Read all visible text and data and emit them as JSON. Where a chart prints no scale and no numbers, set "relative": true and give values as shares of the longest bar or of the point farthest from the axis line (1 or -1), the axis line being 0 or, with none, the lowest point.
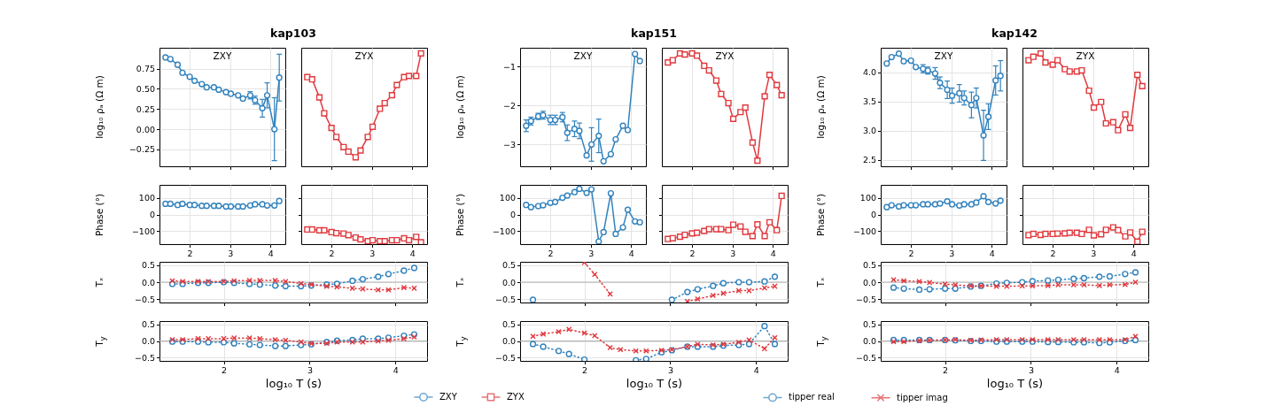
{
  "chart_data": [
    {
      "type": "line",
      "title": "kap103",
      "ylabel": "log₁₀ ρₐ (Ω m)",
      "x": [
        1.4,
        1.52,
        1.7,
        1.82,
        2.0,
        2.12,
        2.3,
        2.42,
        2.6,
        2.72,
        2.9,
        3.02,
        3.2,
        3.32,
        3.5,
        3.62,
        3.8,
        3.92,
        4.1,
        4.22
      ],
      "xlim": [
        1.25,
        4.37
      ],
      "xticks": [
        2,
        3,
        4
      ],
      "ylim": [
        -0.46,
        1.01
      ],
      "yticks": [
        {
          "value": -0.25,
          "label": "−0.25"
        },
        {
          "value": 0,
          "label": "0.00"
        },
        {
          "value": 0.25,
          "label": "0.25"
        },
        {
          "value": 0.5,
          "label": "0.50"
        },
        {
          "value": 0.75,
          "label": "0.75"
        }
      ],
      "grid": true,
      "tick_labels": "y",
      "series": [
        {
          "name": "ZXY",
          "color": "#3182bd",
          "marker": "circle",
          "line_style": "solid",
          "values": [
            0.89,
            0.87,
            0.8,
            0.7,
            0.65,
            0.6,
            0.56,
            0.52,
            0.52,
            0.49,
            0.46,
            0.44,
            0.42,
            0.38,
            0.42,
            0.36,
            0.26,
            0.42,
            0.0,
            0.64
          ],
          "errors": [
            null,
            null,
            null,
            null,
            null,
            null,
            null,
            null,
            null,
            null,
            null,
            null,
            null,
            null,
            0.045,
            0.05,
            0.11,
            0.155,
            0.39,
            0.29
          ]
        }
      ]
    },
    {
      "type": "line",
      "relative": true,
      "x": [
        1.4,
        1.52,
        1.7,
        1.82,
        2.0,
        2.12,
        2.3,
        2.42,
        2.6,
        2.72,
        2.9,
        3.02,
        3.2,
        3.32,
        3.5,
        3.62,
        3.8,
        3.92,
        4.1,
        4.22
      ],
      "xlim": [
        1.25,
        4.37
      ],
      "xticks": [
        2,
        3,
        4
      ],
      "grid": true,
      "tick_labels": false,
      "series": [
        {
          "name": "ZYX",
          "color": "#e0393e",
          "marker": "square",
          "line_style": "solid",
          "values": [
            0.79,
            0.77,
            0.61,
            0.47,
            0.34,
            0.26,
            0.17,
            0.13,
            0.08,
            0.14,
            0.26,
            0.35,
            0.51,
            0.56,
            0.63,
            0.72,
            0.79,
            0.8,
            0.8,
            1
          ]
        }
      ]
    },
    {
      "type": "line",
      "ylabel": "Phase (°)",
      "x": [
        1.4,
        1.52,
        1.7,
        1.82,
        2.0,
        2.12,
        2.3,
        2.42,
        2.6,
        2.72,
        2.9,
        3.02,
        3.2,
        3.32,
        3.5,
        3.62,
        3.8,
        3.92,
        4.1,
        4.22
      ],
      "xlim": [
        1.25,
        4.37
      ],
      "xticks": [
        2,
        3,
        4
      ],
      "ylim": [
        -180,
        180
      ],
      "yticks": [
        {
          "value": -100,
          "label": "−100"
        },
        0,
        100
      ],
      "grid": true,
      "legend": "bottom",
      "series": [
        {
          "name": "ZXY",
          "color": "#3182bd",
          "marker": "circle",
          "line_style": "solid",
          "values": [
            65,
            65,
            58,
            65,
            58,
            58,
            53,
            53,
            53,
            53,
            49,
            49,
            49,
            49,
            55,
            62,
            62,
            55,
            55,
            82
          ]
        }
      ]
    },
    {
      "type": "line",
      "x": [
        1.4,
        1.52,
        1.7,
        1.82,
        2.0,
        2.12,
        2.3,
        2.42,
        2.6,
        2.72,
        2.9,
        3.02,
        3.2,
        3.32,
        3.5,
        3.62,
        3.8,
        3.92,
        4.1,
        4.22
      ],
      "xlim": [
        1.25,
        4.37
      ],
      "xticks": [
        2,
        3,
        4
      ],
      "ylim": [
        -180,
        180
      ],
      "yticks": [
        -100,
        0,
        100
      ],
      "grid": true,
      "tick_labels": "x",
      "legend": "bottom",
      "series": [
        {
          "name": "ZYX",
          "color": "#e0393e",
          "marker": "square",
          "line_style": "solid",
          "values": [
            -91,
            -91,
            -96,
            -96,
            -107,
            -113,
            -116,
            -125,
            -140,
            -151,
            -162,
            -156,
            -162,
            -162,
            -156,
            -156,
            -145,
            -156,
            -136,
            -169
          ]
        }
      ]
    },
    {
      "type": "line",
      "ylabel": "Tₓ",
      "x": [
        1.4,
        1.52,
        1.7,
        1.82,
        2.0,
        2.12,
        2.3,
        2.42,
        2.6,
        2.72,
        2.9,
        3.02,
        3.2,
        3.32,
        3.5,
        3.62,
        3.8,
        3.92,
        4.1,
        4.22
      ],
      "xlim": [
        1.25,
        4.37
      ],
      "xticks": [
        2,
        3,
        4
      ],
      "ylim": [
        -0.6,
        0.6
      ],
      "yticks": [
        {
          "value": -0.5,
          "label": "−0.5"
        },
        {
          "value": 0,
          "label": "0.0"
        },
        0.5
      ],
      "grid": true,
      "tick_labels": "y",
      "ref_lines": [
        {
          "axis": "y",
          "value": 0,
          "color": "#b0b0b0"
        }
      ],
      "series": [
        {
          "color": "#3182bd",
          "marker": "circle",
          "line_style": "dotted",
          "values": [
            -0.05,
            -0.05,
            -0.02,
            -0.02,
            0,
            -0.02,
            -0.05,
            -0.07,
            -0.1,
            -0.12,
            -0.12,
            -0.1,
            -0.07,
            -0.05,
            0.04,
            0.09,
            0.16,
            0.24,
            0.34,
            0.42
          ]
        },
        {
          "color": "#e0393e",
          "marker": "cross",
          "line_style": "dotted",
          "values": [
            0.04,
            0.02,
            0.02,
            0.02,
            0.02,
            0.04,
            0.05,
            0.05,
            0.05,
            0.02,
            -0.04,
            -0.07,
            -0.12,
            -0.14,
            -0.18,
            -0.2,
            -0.23,
            -0.23,
            -0.16,
            -0.18
          ]
        }
      ]
    },
    {
      "type": "line",
      "xlabel": "log₁₀ T (s)",
      "ylabel": "T$_{y}$",
      "x": [
        1.4,
        1.52,
        1.7,
        1.82,
        2.0,
        2.12,
        2.3,
        2.42,
        2.6,
        2.72,
        2.9,
        3.02,
        3.2,
        3.32,
        3.5,
        3.62,
        3.8,
        3.92,
        4.1,
        4.22
      ],
      "xlim": [
        1.25,
        4.37
      ],
      "xticks": [
        2,
        3,
        4
      ],
      "ylim": [
        -0.6,
        0.6
      ],
      "yticks": [
        {
          "value": -0.5,
          "label": "−0.5"
        },
        {
          "value": 0,
          "label": "0.0"
        },
        0.5
      ],
      "grid": true,
      "ref_lines": [
        {
          "axis": "y",
          "value": 0,
          "color": "#b0b0b0"
        }
      ],
      "series": [
        {
          "color": "#3182bd",
          "marker": "circle",
          "line_style": "dotted",
          "values": [
            -0.02,
            -0.02,
            -0.02,
            -0.04,
            -0.04,
            -0.07,
            -0.1,
            -0.12,
            -0.15,
            -0.15,
            -0.12,
            -0.1,
            -0.03,
            0.01,
            0.03,
            0.07,
            0.07,
            0.1,
            0.16,
            0.2
          ]
        },
        {
          "color": "#e0393e",
          "marker": "cross",
          "line_style": "dotted",
          "values": [
            0.04,
            0.04,
            0.07,
            0.07,
            0.07,
            0.09,
            0.09,
            0.07,
            0.04,
            0.02,
            -0.03,
            -0.08,
            -0.07,
            -0.03,
            -0.03,
            -0.03,
            0,
            0.02,
            0.07,
            0.12
          ]
        }
      ]
    },
    {
      "type": "line",
      "title": "kap151",
      "ylabel": "log₁₀ ρₐ (Ω m)",
      "x": [
        1.4,
        1.52,
        1.7,
        1.82,
        2.0,
        2.12,
        2.3,
        2.42,
        2.6,
        2.72,
        2.9,
        3.02,
        3.2,
        3.32,
        3.5,
        3.62,
        3.8,
        3.92,
        4.1,
        4.22
      ],
      "xlim": [
        1.25,
        4.37
      ],
      "xticks": [
        2,
        3,
        4
      ],
      "ylim": [
        -3.56,
        -0.52
      ],
      "yticks": [
        {
          "value": -3,
          "label": "−3"
        },
        {
          "value": -2,
          "label": "−2"
        },
        {
          "value": -1,
          "label": "−1"
        }
      ],
      "grid": true,
      "tick_labels": "y",
      "series": [
        {
          "name": "ZXY",
          "color": "#3182bd",
          "marker": "circle",
          "line_style": "solid",
          "values": [
            -2.52,
            -2.4,
            -2.28,
            -2.25,
            -2.37,
            -2.37,
            -2.3,
            -2.7,
            -2.6,
            -2.65,
            -3.28,
            -3.0,
            -2.78,
            -3.43,
            -3.25,
            -2.87,
            -2.52,
            -2.63,
            -0.68,
            -0.86
          ],
          "errors": [
            0.15,
            0.1,
            0.08,
            0.1,
            0.12,
            0.12,
            0.12,
            0.2,
            0.2,
            0.2,
            null,
            0.43,
            0.43,
            null,
            null,
            null,
            null,
            null,
            null,
            null
          ]
        }
      ]
    },
    {
      "type": "line",
      "relative": true,
      "x": [
        1.4,
        1.52,
        1.7,
        1.82,
        2.0,
        2.12,
        2.3,
        2.42,
        2.6,
        2.72,
        2.9,
        3.02,
        3.2,
        3.32,
        3.5,
        3.62,
        3.8,
        3.92,
        4.1,
        4.22
      ],
      "xlim": [
        1.25,
        4.37
      ],
      "xticks": [
        2,
        3,
        4
      ],
      "grid": true,
      "tick_labels": false,
      "series": [
        {
          "name": "ZYX",
          "color": "#e0393e",
          "marker": "square",
          "line_style": "solid",
          "values": [
            0.92,
            0.94,
            1,
            0.99,
            1,
            0.98,
            0.89,
            0.85,
            0.76,
            0.64,
            0.56,
            0.42,
            0.48,
            0.52,
            0.21,
            0.05,
            0.62,
            0.81,
            0.72,
            0.63
          ]
        }
      ]
    },
    {
      "type": "line",
      "ylabel": "Phase (°)",
      "x": [
        1.4,
        1.52,
        1.7,
        1.82,
        2.0,
        2.12,
        2.3,
        2.42,
        2.6,
        2.72,
        2.9,
        3.02,
        3.2,
        3.32,
        3.5,
        3.62,
        3.8,
        3.92,
        4.1,
        4.22
      ],
      "xlim": [
        1.25,
        4.37
      ],
      "xticks": [
        2,
        3,
        4
      ],
      "ylim": [
        -180,
        180
      ],
      "yticks": [
        {
          "value": -100,
          "label": "−100"
        },
        0,
        100
      ],
      "grid": true,
      "series": [
        {
          "color": "#3182bd",
          "marker": "circle",
          "line_style": "solid",
          "values": [
            58,
            45,
            51,
            56,
            71,
            76,
            102,
            115,
            136,
            156,
            131,
            153,
            -164,
            -107,
            129,
            -118,
            -78,
            29,
            -42,
            -47
          ]
        }
      ]
    },
    {
      "type": "line",
      "x": [
        1.4,
        1.52,
        1.7,
        1.82,
        2.0,
        2.12,
        2.3,
        2.42,
        2.6,
        2.72,
        2.9,
        3.02,
        3.2,
        3.32,
        3.5,
        3.62,
        3.8,
        3.92,
        4.1,
        4.22
      ],
      "xlim": [
        1.25,
        4.37
      ],
      "xticks": [
        2,
        3,
        4
      ],
      "ylim": [
        -180,
        180
      ],
      "yticks": [
        -100,
        0,
        100
      ],
      "grid": true,
      "tick_labels": "x",
      "series": [
        {
          "color": "#e0393e",
          "marker": "square",
          "line_style": "solid",
          "values": [
            -149,
            -144,
            -135,
            -124,
            -115,
            -111,
            -100,
            -89,
            -89,
            -89,
            -95,
            -62,
            -73,
            -105,
            -131,
            -60,
            -131,
            -47,
            -95,
            113
          ]
        }
      ]
    },
    {
      "type": "line",
      "ylabel": "Tₓ",
      "x": [
        1.4,
        1.52,
        1.7,
        1.82,
        2.0,
        2.12,
        2.3,
        2.42,
        2.6,
        2.72,
        2.9,
        3.02,
        3.2,
        3.32,
        3.5,
        3.62,
        3.8,
        3.92,
        4.1,
        4.22
      ],
      "xlim": [
        1.25,
        4.37
      ],
      "xticks": [
        2,
        3,
        4
      ],
      "ylim": [
        -0.6,
        0.6
      ],
      "yticks": [
        {
          "value": -0.5,
          "label": "−0.5"
        },
        {
          "value": 0,
          "label": "0.0"
        },
        0.5
      ],
      "grid": true,
      "tick_labels": "y",
      "ref_lines": [
        {
          "axis": "y",
          "value": 0,
          "color": "#b0b0b0"
        }
      ],
      "series": [
        {
          "color": "#3182bd",
          "marker": "circle",
          "line_style": "dotted",
          "values": [
            -0.52,
            null,
            null,
            null,
            null,
            null,
            null,
            null,
            null,
            null,
            null,
            -0.52,
            -0.29,
            -0.21,
            -0.11,
            -0.03,
            0,
            0,
            0.02,
            0.16
          ]
        },
        {
          "color": "#e0393e",
          "marker": "cross",
          "line_style": "dotted",
          "values": [
            null,
            null,
            null,
            null,
            0.58,
            0.23,
            -0.35,
            null,
            null,
            null,
            null,
            null,
            -0.57,
            -0.5,
            -0.39,
            -0.33,
            -0.25,
            -0.25,
            -0.17,
            -0.12
          ]
        }
      ]
    },
    {
      "type": "line",
      "xlabel": "log₁₀ T (s)",
      "ylabel": "T$_{y}$",
      "x": [
        1.4,
        1.52,
        1.7,
        1.82,
        2.0,
        2.12,
        2.3,
        2.42,
        2.6,
        2.72,
        2.9,
        3.02,
        3.2,
        3.32,
        3.5,
        3.62,
        3.8,
        3.92,
        4.1,
        4.22
      ],
      "xlim": [
        1.25,
        4.37
      ],
      "xticks": [
        2,
        3,
        4
      ],
      "ylim": [
        -0.6,
        0.6
      ],
      "yticks": [
        {
          "value": -0.5,
          "label": "−0.5"
        },
        {
          "value": 0,
          "label": "0.0"
        },
        0.5
      ],
      "grid": true,
      "legend": "bottom",
      "ref_lines": [
        {
          "axis": "y",
          "value": 0,
          "color": "#b0b0b0"
        }
      ],
      "series": [
        {
          "name": "tipper real",
          "color": "#3182bd",
          "marker": "circle",
          "line_style": "dotted",
          "values": [
            -0.09,
            -0.17,
            -0.3,
            -0.39,
            -0.56,
            null,
            null,
            null,
            -0.58,
            -0.54,
            -0.34,
            -0.28,
            -0.17,
            -0.17,
            -0.17,
            -0.14,
            -0.12,
            -0.09,
            0.45,
            -0.09
          ]
        },
        {
          "name": "tipper imag",
          "color": "#e0393e",
          "marker": "cross",
          "line_style": "dotted",
          "values": [
            0.14,
            0.21,
            0.28,
            0.35,
            0.24,
            0.16,
            -0.2,
            -0.26,
            -0.3,
            -0.3,
            -0.28,
            -0.26,
            -0.17,
            -0.1,
            -0.12,
            -0.1,
            -0.04,
            0.03,
            -0.23,
            0.1
          ]
        }
      ]
    },
    {
      "type": "line",
      "title": "kap142",
      "ylabel": "log₁₀ ρₐ (Ω m)",
      "x": [
        1.4,
        1.52,
        1.7,
        1.82,
        2.0,
        2.12,
        2.3,
        2.42,
        2.6,
        2.72,
        2.9,
        3.02,
        3.2,
        3.32,
        3.5,
        3.62,
        3.8,
        3.92,
        4.1,
        4.22
      ],
      "xlim": [
        1.25,
        4.37
      ],
      "xticks": [
        2,
        3,
        4
      ],
      "ylim": [
        2.39,
        4.42
      ],
      "yticks": [
        2.5,
        {
          "value": 3,
          "label": "3.0"
        },
        3.5,
        {
          "value": 4,
          "label": "4.0"
        }
      ],
      "grid": true,
      "tick_labels": "y",
      "series": [
        {
          "name": "ZXY",
          "color": "#3182bd",
          "marker": "circle",
          "line_style": "solid",
          "values": [
            4.15,
            4.26,
            4.32,
            4.19,
            4.2,
            4.09,
            4.06,
            4.03,
            3.98,
            3.82,
            3.7,
            3.6,
            3.64,
            3.56,
            3.44,
            3.56,
            2.92,
            3.24,
            3.86,
            3.94
          ],
          "errors": [
            null,
            null,
            null,
            null,
            null,
            null,
            0.07,
            0.06,
            0.1,
            0.1,
            0.15,
            0.13,
            0.15,
            0.12,
            0.22,
            0.17,
            0.43,
            0.22,
            0.25,
            0.26
          ]
        }
      ]
    },
    {
      "type": "line",
      "relative": true,
      "x": [
        1.4,
        1.52,
        1.7,
        1.82,
        2.0,
        2.12,
        2.3,
        2.42,
        2.6,
        2.72,
        2.9,
        3.02,
        3.2,
        3.32,
        3.5,
        3.62,
        3.8,
        3.92,
        4.1,
        4.22
      ],
      "xlim": [
        1.25,
        4.37
      ],
      "xticks": [
        2,
        3,
        4
      ],
      "grid": true,
      "tick_labels": false,
      "series": [
        {
          "name": "ZYX",
          "color": "#e0393e",
          "marker": "square",
          "line_style": "solid",
          "values": [
            0.94,
            0.97,
            1,
            0.92,
            0.9,
            0.94,
            0.86,
            0.84,
            0.84,
            0.85,
            0.67,
            0.52,
            0.57,
            0.38,
            0.39,
            0.32,
            0.46,
            0.34,
            0.81,
            0.71
          ]
        }
      ]
    },
    {
      "type": "line",
      "ylabel": "Phase (°)",
      "x": [
        1.4,
        1.52,
        1.7,
        1.82,
        2.0,
        2.12,
        2.3,
        2.42,
        2.6,
        2.72,
        2.9,
        3.02,
        3.2,
        3.32,
        3.5,
        3.62,
        3.8,
        3.92,
        4.1,
        4.22
      ],
      "xlim": [
        1.25,
        4.37
      ],
      "xticks": [
        2,
        3,
        4
      ],
      "ylim": [
        -180,
        180
      ],
      "yticks": [
        {
          "value": -100,
          "label": "−100"
        },
        0,
        100
      ],
      "grid": true,
      "series": [
        {
          "color": "#3182bd",
          "marker": "circle",
          "line_style": "solid",
          "values": [
            45,
            56,
            49,
            56,
            56,
            56,
            62,
            62,
            62,
            67,
            80,
            62,
            55,
            62,
            62,
            73,
            111,
            76,
            67,
            84
          ]
        }
      ]
    },
    {
      "type": "line",
      "x": [
        1.4,
        1.52,
        1.7,
        1.82,
        2.0,
        2.12,
        2.3,
        2.42,
        2.6,
        2.72,
        2.9,
        3.02,
        3.2,
        3.32,
        3.5,
        3.62,
        3.8,
        3.92,
        4.1,
        4.22
      ],
      "xlim": [
        1.25,
        4.37
      ],
      "xticks": [
        2,
        3,
        4
      ],
      "ylim": [
        -180,
        180
      ],
      "yticks": [
        -100,
        0,
        100
      ],
      "grid": true,
      "tick_labels": "x",
      "series": [
        {
          "color": "#e0393e",
          "marker": "square",
          "line_style": "solid",
          "values": [
            -125,
            -118,
            -124,
            -118,
            -118,
            -116,
            -115,
            -111,
            -111,
            -118,
            -93,
            -127,
            -120,
            -93,
            -78,
            -95,
            -133,
            -109,
            -165,
            -105
          ]
        }
      ]
    },
    {
      "type": "line",
      "ylabel": "Tₓ",
      "x": [
        1.4,
        1.52,
        1.7,
        1.82,
        2.0,
        2.12,
        2.3,
        2.42,
        2.6,
        2.72,
        2.9,
        3.02,
        3.2,
        3.32,
        3.5,
        3.62,
        3.8,
        3.92,
        4.1,
        4.22
      ],
      "xlim": [
        1.25,
        4.37
      ],
      "xticks": [
        2,
        3,
        4
      ],
      "ylim": [
        -0.6,
        0.6
      ],
      "yticks": [
        {
          "value": -0.5,
          "label": "−0.5"
        },
        {
          "value": 0,
          "label": "0.0"
        },
        0.5
      ],
      "grid": true,
      "tick_labels": "y",
      "ref_lines": [
        {
          "axis": "y",
          "value": 0,
          "color": "#b0b0b0"
        }
      ],
      "series": [
        {
          "color": "#3182bd",
          "marker": "circle",
          "line_style": "dotted",
          "values": [
            -0.16,
            -0.19,
            -0.22,
            -0.21,
            -0.19,
            -0.19,
            -0.13,
            -0.11,
            -0.04,
            -0.02,
            0,
            0.03,
            0.05,
            0.07,
            0.1,
            0.12,
            0.16,
            0.17,
            0.24,
            0.29
          ]
        },
        {
          "color": "#e0393e",
          "marker": "cross",
          "line_style": "dotted",
          "values": [
            0.07,
            0.04,
            0.02,
            -0.01,
            -0.06,
            -0.08,
            -0.11,
            -0.11,
            -0.12,
            -0.12,
            -0.11,
            -0.11,
            -0.1,
            -0.08,
            -0.08,
            -0.08,
            -0.1,
            -0.08,
            -0.07,
            0
          ]
        }
      ]
    },
    {
      "type": "line",
      "xlabel": "log₁₀ T (s)",
      "ylabel": "T$_{y}$",
      "x": [
        1.4,
        1.52,
        1.7,
        1.82,
        2.0,
        2.12,
        2.3,
        2.42,
        2.6,
        2.72,
        2.9,
        3.02,
        3.2,
        3.32,
        3.5,
        3.62,
        3.8,
        3.92,
        4.1,
        4.22
      ],
      "xlim": [
        1.25,
        4.37
      ],
      "xticks": [
        2,
        3,
        4
      ],
      "ylim": [
        -0.6,
        0.6
      ],
      "yticks": [
        {
          "value": -0.5,
          "label": "−0.5"
        },
        {
          "value": 0,
          "label": "0.0"
        },
        0.5
      ],
      "grid": true,
      "ref_lines": [
        {
          "axis": "y",
          "value": 0,
          "color": "#b0b0b0"
        }
      ],
      "series": [
        {
          "color": "#3182bd",
          "marker": "circle",
          "line_style": "dotted",
          "values": [
            0.03,
            0.03,
            0.03,
            0.03,
            0.03,
            0.02,
            0,
            0,
            -0.02,
            -0.02,
            -0.02,
            -0.02,
            -0.03,
            -0.03,
            -0.04,
            -0.04,
            -0.06,
            -0.04,
            0,
            0.03
          ]
        },
        {
          "color": "#e0393e",
          "marker": "cross",
          "line_style": "dotted",
          "values": [
            -0.02,
            -0.02,
            0.01,
            0.02,
            0.03,
            0.04,
            0.02,
            0.03,
            0.04,
            0.04,
            0.04,
            0.04,
            0.04,
            0.04,
            0.04,
            0.04,
            0.04,
            0.04,
            0.04,
            0.14
          ]
        }
      ]
    }
  ]
}
